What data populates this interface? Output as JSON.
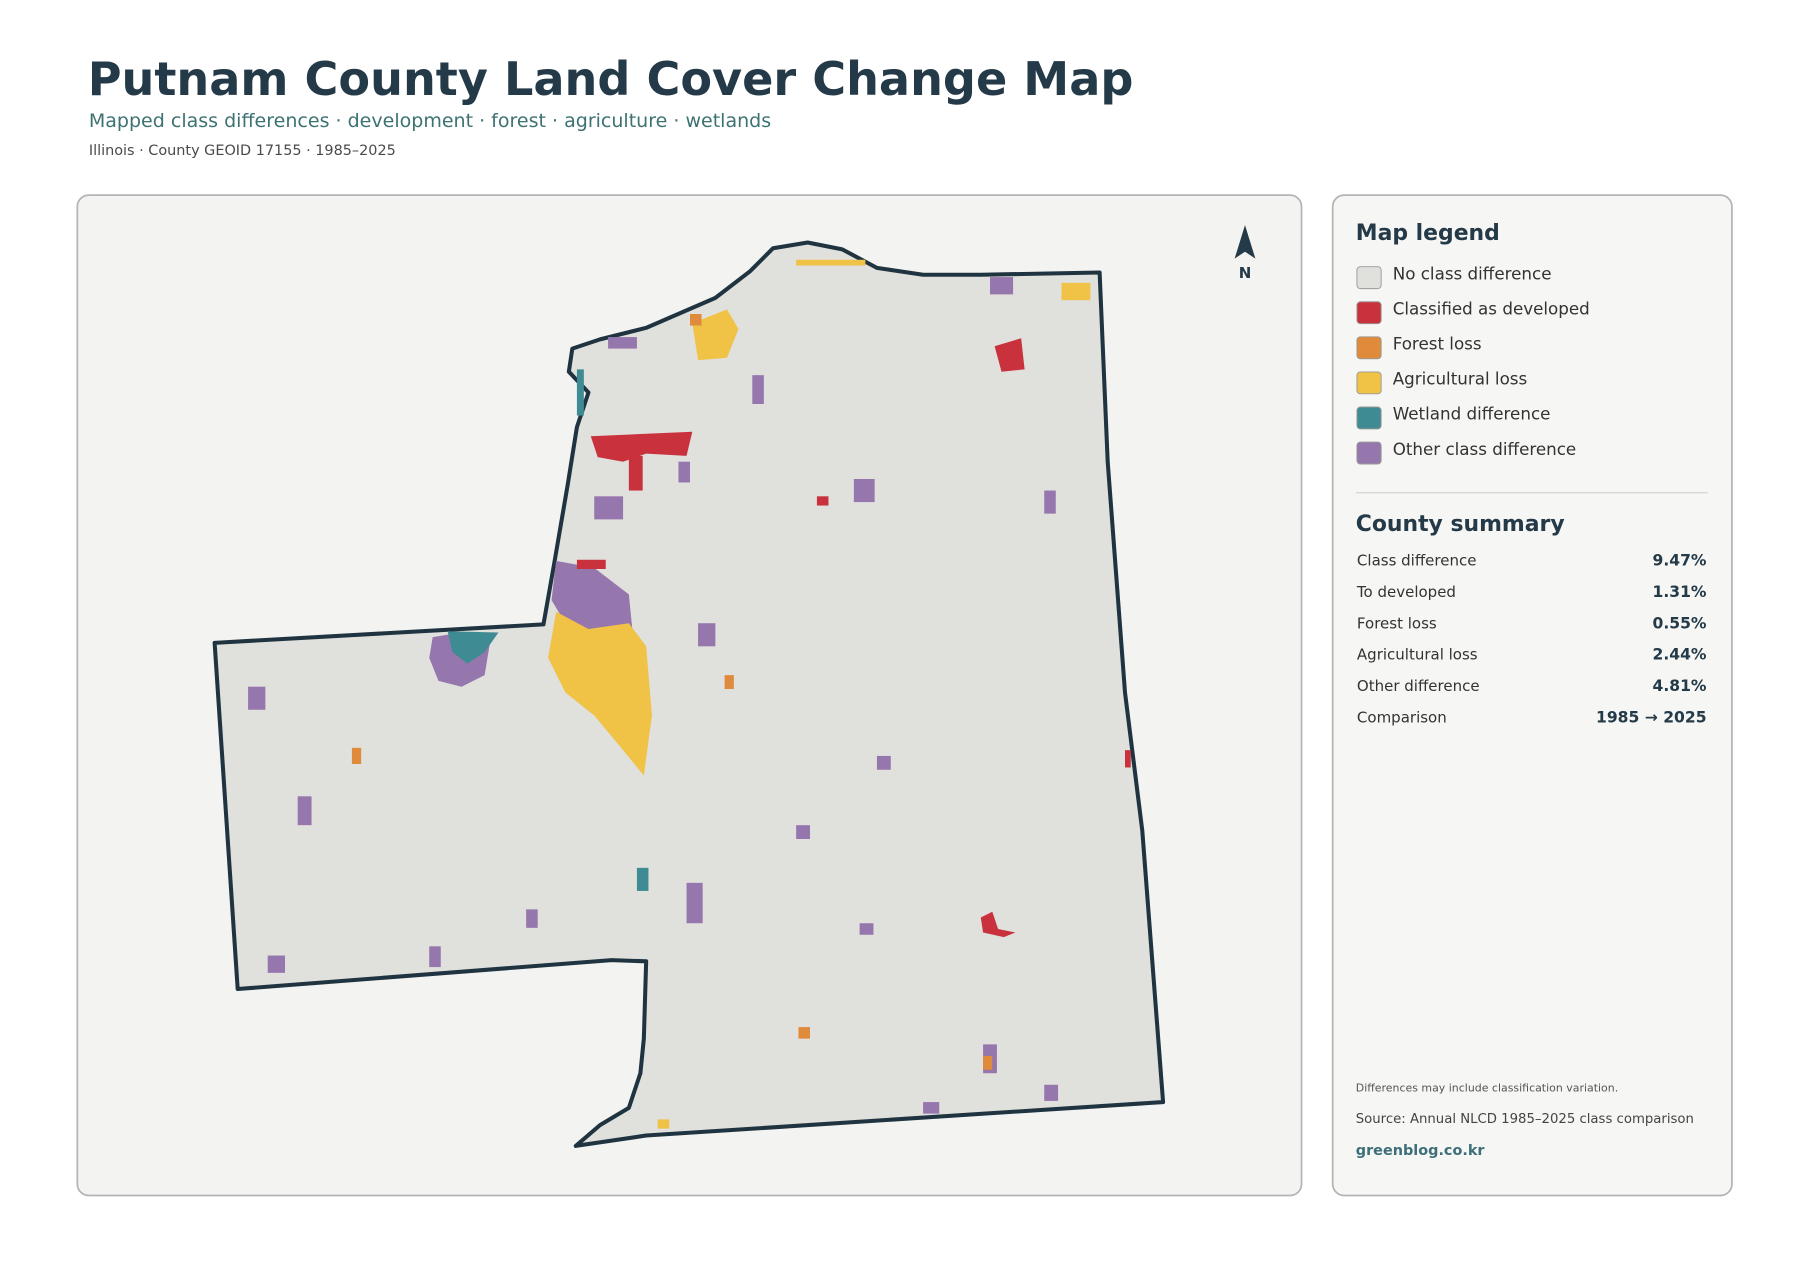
{
  "header": {
    "title": "Putnam County Land Cover Change Map",
    "subtitle": "Mapped class differences · development · forest · agriculture · wetlands",
    "meta": "Illinois · County GEOID 17155 · 1985–2025"
  },
  "map": {
    "north_label": "N"
  },
  "legend": {
    "title": "Map legend",
    "items": [
      {
        "label": "No class difference",
        "color": "#e0e0dc"
      },
      {
        "label": "Classified as developed",
        "color": "#c9323d"
      },
      {
        "label": "Forest loss",
        "color": "#e08a3c"
      },
      {
        "label": "Agricultural loss",
        "color": "#f0c245"
      },
      {
        "label": "Wetland difference",
        "color": "#3f8b93"
      },
      {
        "label": "Other class difference",
        "color": "#9677ad"
      }
    ]
  },
  "summary": {
    "title": "County summary",
    "rows": [
      {
        "label": "Class difference",
        "value": "9.47%"
      },
      {
        "label": "To developed",
        "value": "1.31%"
      },
      {
        "label": "Forest loss",
        "value": "0.55%"
      },
      {
        "label": "Agricultural loss",
        "value": "2.44%"
      },
      {
        "label": "Other difference",
        "value": "4.81%"
      },
      {
        "label": "Comparison",
        "value": "1985 → 2025"
      }
    ]
  },
  "footer": {
    "note": "Differences may include classification variation.",
    "source": "Source: Annual NLCD 1985–2025 class comparison",
    "brand": "greenblog.co.kr"
  }
}
